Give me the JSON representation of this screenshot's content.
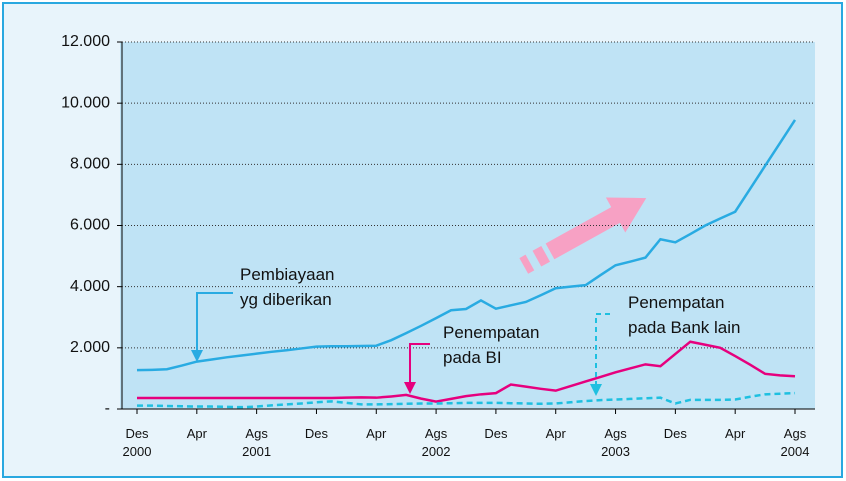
{
  "chart_data": {
    "type": "line",
    "categories": [
      "Des 2000",
      null,
      null,
      null,
      "Apr",
      null,
      null,
      null,
      "Ags 2001",
      null,
      null,
      null,
      "Des",
      null,
      null,
      null,
      "Apr",
      null,
      null,
      null,
      "Ags 2002",
      null,
      null,
      null,
      "Des",
      null,
      null,
      null,
      "Apr",
      null,
      null,
      null,
      "Ags 2003",
      null,
      null,
      null,
      "Des",
      null,
      null,
      null,
      "Apr",
      null,
      null,
      null,
      "Ags 2004"
    ],
    "series": [
      {
        "name": "Pembiayaan yg diberikan",
        "color": "#29abe2",
        "dashed": false,
        "values": [
          1270,
          1280,
          1300,
          1420,
          1550,
          1620,
          1690,
          1750,
          1810,
          1870,
          1920,
          1980,
          2040,
          2050,
          2050,
          2060,
          2070,
          2250,
          2480,
          2720,
          2970,
          3230,
          3270,
          3550,
          3280,
          3390,
          3500,
          3720,
          3950,
          4000,
          4050,
          4380,
          4700,
          4820,
          4950,
          5550,
          5450,
          5720,
          6000,
          6230,
          6450,
          7200,
          7950,
          8700,
          9450
        ]
      },
      {
        "name": "Penempatan pada BI",
        "color": "#e6007e",
        "dashed": false,
        "values": [
          360,
          360,
          360,
          360,
          360,
          360,
          360,
          360,
          360,
          360,
          360,
          360,
          360,
          360,
          370,
          380,
          370,
          410,
          460,
          340,
          240,
          330,
          420,
          480,
          520,
          800,
          730,
          660,
          600,
          750,
          900,
          1050,
          1200,
          1330,
          1460,
          1400,
          1800,
          2200,
          2100,
          2000,
          1730,
          1450,
          1150,
          1100,
          1070
        ]
      },
      {
        "name": "Penempatan pada Bank lain",
        "color": "#1ec0e0",
        "dashed": true,
        "values": [
          110,
          110,
          100,
          90,
          80,
          80,
          70,
          60,
          80,
          120,
          150,
          180,
          220,
          250,
          200,
          150,
          150,
          160,
          170,
          180,
          180,
          190,
          200,
          200,
          200,
          190,
          180,
          170,
          180,
          220,
          260,
          290,
          310,
          330,
          350,
          370,
          180,
          300,
          300,
          300,
          310,
          400,
          480,
          500,
          520
        ]
      }
    ],
    "ylim": [
      0,
      12000
    ],
    "yticks": [
      {
        "value": 0,
        "label": "-"
      },
      {
        "value": 2000,
        "label": "2.000"
      },
      {
        "value": 4000,
        "label": "4.000"
      },
      {
        "value": 6000,
        "label": "6.000"
      },
      {
        "value": 8000,
        "label": "8.000"
      },
      {
        "value": 10000,
        "label": "10.000"
      },
      {
        "value": 12000,
        "label": "12.000"
      }
    ],
    "grid": true
  }
}
